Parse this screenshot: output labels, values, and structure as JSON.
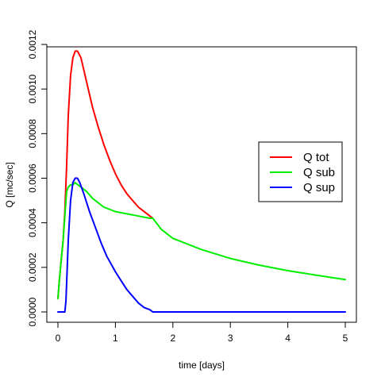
{
  "chart_data": {
    "type": "line",
    "title": "",
    "xlabel": "time [days]",
    "ylabel": "Q [mc/sec]",
    "xlim": [
      0,
      5
    ],
    "ylim": [
      0,
      0.0012
    ],
    "grid": false,
    "legend_position": "right",
    "x_ticks": [
      0,
      1,
      2,
      3,
      4,
      5
    ],
    "x_tick_labels": [
      "0",
      "1",
      "2",
      "3",
      "4",
      "5"
    ],
    "y_ticks": [
      0,
      0.0002,
      0.0004,
      0.0006,
      0.0008,
      0.001,
      0.0012
    ],
    "y_tick_labels": [
      "0.0000",
      "0.0002",
      "0.0004",
      "0.0006",
      "0.0008",
      "0.0010",
      "0.0012"
    ],
    "series": [
      {
        "name": "Q tot",
        "color": "#ff0000",
        "x": [
          0.0,
          0.03,
          0.06,
          0.09,
          0.12,
          0.15,
          0.18,
          0.22,
          0.26,
          0.3,
          0.34,
          0.4,
          0.5,
          0.6,
          0.7,
          0.8,
          0.9,
          1.0,
          1.1,
          1.2,
          1.3,
          1.4,
          1.5,
          1.6,
          1.65
        ],
        "y": [
          6e-05,
          0.00016,
          0.00024,
          0.00032,
          0.00045,
          0.00065,
          0.00088,
          0.00106,
          0.00114,
          0.00117,
          0.00117,
          0.00114,
          0.00103,
          0.00092,
          0.00083,
          0.00075,
          0.00068,
          0.00062,
          0.00057,
          0.00053,
          0.0005,
          0.00047,
          0.00045,
          0.00043,
          0.00042
        ]
      },
      {
        "name": "Q sub",
        "color": "#00ee00",
        "x": [
          0.0,
          0.03,
          0.06,
          0.09,
          0.12,
          0.15,
          0.18,
          0.22,
          0.26,
          0.3,
          0.35,
          0.4,
          0.5,
          0.6,
          0.7,
          0.8,
          1.0,
          1.2,
          1.4,
          1.6,
          1.65,
          1.8,
          2.0,
          2.5,
          3.0,
          3.5,
          4.0,
          4.5,
          5.0
        ],
        "y": [
          6e-05,
          0.00016,
          0.00024,
          0.00032,
          0.00043,
          0.00054,
          0.00056,
          0.00057,
          0.00057,
          0.00058,
          0.00057,
          0.00056,
          0.00054,
          0.00051,
          0.00049,
          0.00047,
          0.00045,
          0.00044,
          0.00043,
          0.00042,
          0.00042,
          0.00037,
          0.00033,
          0.00028,
          0.00024,
          0.00021,
          0.000185,
          0.000165,
          0.000145
        ]
      },
      {
        "name": "Q sup",
        "color": "#0000ff",
        "x": [
          0.0,
          0.12,
          0.14,
          0.18,
          0.22,
          0.26,
          0.3,
          0.34,
          0.38,
          0.45,
          0.55,
          0.65,
          0.75,
          0.85,
          1.0,
          1.1,
          1.2,
          1.3,
          1.4,
          1.5,
          1.6,
          1.65,
          2.0,
          3.0,
          4.0,
          5.0
        ],
        "y": [
          0.0,
          0.0,
          5e-05,
          0.00032,
          0.0005,
          0.00058,
          0.0006,
          0.0006,
          0.00058,
          0.00053,
          0.00045,
          0.00038,
          0.00031,
          0.00025,
          0.00018,
          0.00014,
          0.0001,
          7e-05,
          4e-05,
          2e-05,
          1e-05,
          0.0,
          0.0,
          0.0,
          0.0,
          0.0
        ]
      }
    ]
  }
}
